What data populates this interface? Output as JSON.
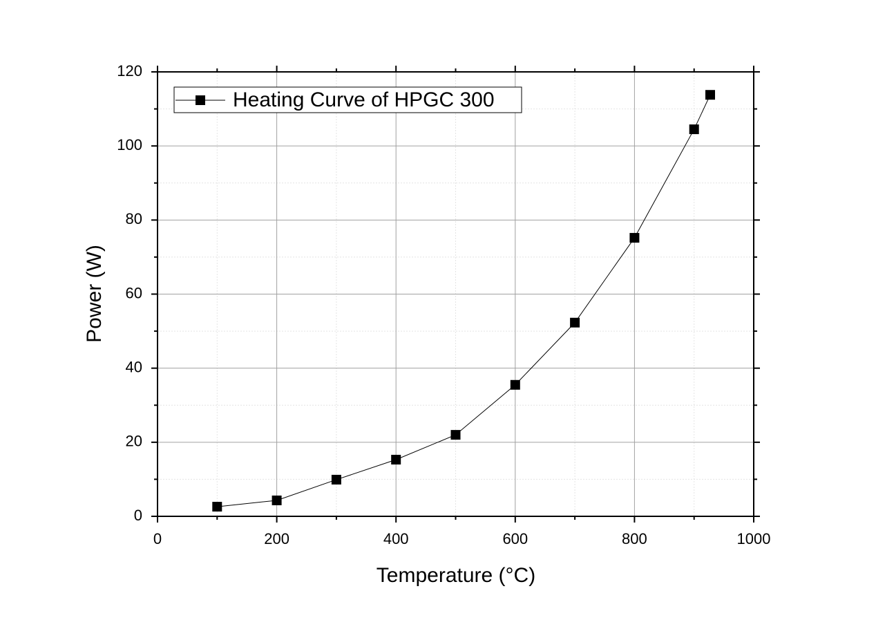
{
  "chart_data": {
    "type": "line",
    "x_label": "Temperature (°C)",
    "y_label": "Power (W)",
    "x": [
      100,
      200,
      300,
      400,
      500,
      600,
      700,
      800,
      900,
      927
    ],
    "series": [
      {
        "name": "Heating Curve of HPGC 300",
        "color": "#000000",
        "values": [
          2.6,
          4.3,
          9.9,
          15.3,
          22.0,
          35.5,
          52.3,
          75.2,
          104.5,
          113.8
        ]
      }
    ],
    "xlim": [
      0,
      1000
    ],
    "xticks": [
      0,
      200,
      400,
      600,
      800,
      1000
    ],
    "ylim": [
      0,
      120
    ],
    "yticks": [
      0,
      20,
      40,
      60,
      80,
      100,
      120
    ],
    "grid": true,
    "legend": "top-left"
  }
}
